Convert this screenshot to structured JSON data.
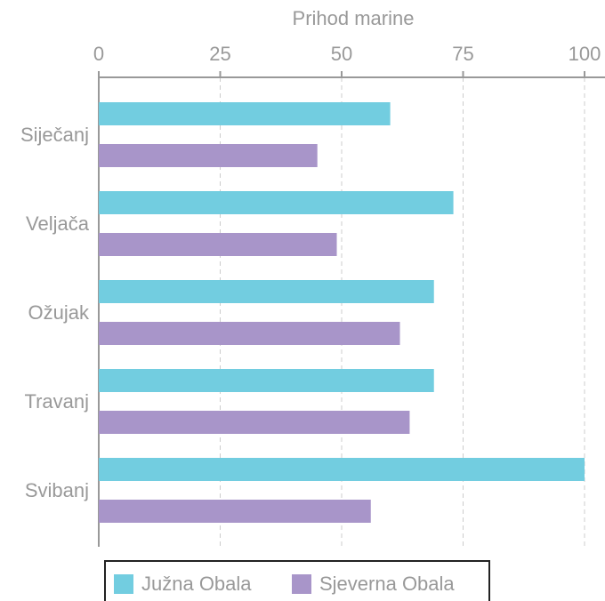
{
  "chart_data": {
    "type": "bar",
    "orientation": "horizontal",
    "x_axis_label": "Prihod marine",
    "categories": [
      "Siječanj",
      "Veljača",
      "Ožujak",
      "Travanj",
      "Svibanj"
    ],
    "series": [
      {
        "name": "Južna Obala",
        "color": "#72cde0",
        "values": [
          60,
          73,
          69,
          69,
          100
        ]
      },
      {
        "name": "Sjeverna Obala",
        "color": "#a895c9",
        "values": [
          45,
          49,
          62,
          64,
          56
        ]
      }
    ],
    "xlim": [
      0,
      100
    ],
    "xticks": [
      0,
      25,
      50,
      75,
      100
    ],
    "grid": true,
    "legend": "bottom"
  }
}
